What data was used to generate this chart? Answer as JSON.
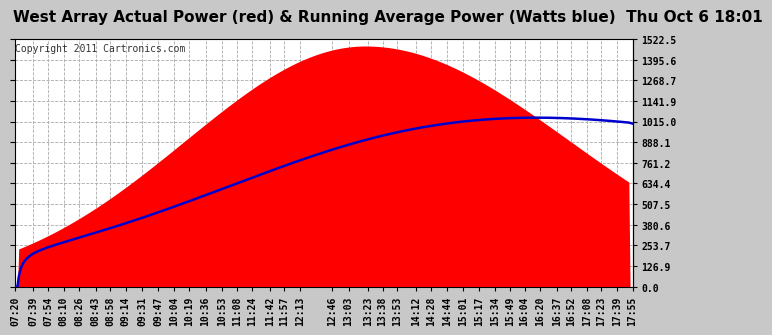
{
  "title": "West Array Actual Power (red) & Running Average Power (Watts blue)  Thu Oct 6 18:01",
  "copyright": "Copyright 2011 Cartronics.com",
  "ylabel_ticks": [
    0.0,
    126.9,
    253.7,
    380.6,
    507.5,
    634.4,
    761.2,
    888.1,
    1015.0,
    1141.9,
    1268.7,
    1395.6,
    1522.5
  ],
  "ymax": 1522.5,
  "ymin": 0.0,
  "x_labels": [
    "07:20",
    "07:39",
    "07:54",
    "08:10",
    "08:26",
    "08:43",
    "08:58",
    "09:14",
    "09:31",
    "09:47",
    "10:04",
    "10:19",
    "10:36",
    "10:53",
    "11:08",
    "11:24",
    "11:42",
    "11:57",
    "12:13",
    "12:46",
    "13:03",
    "13:23",
    "13:38",
    "13:53",
    "14:12",
    "14:28",
    "14:44",
    "15:01",
    "15:17",
    "15:34",
    "15:49",
    "16:04",
    "16:20",
    "16:37",
    "16:52",
    "17:08",
    "17:23",
    "17:39",
    "17:55"
  ],
  "background_color": "#c8c8c8",
  "plot_bg_color": "#ffffff",
  "fill_color": "#ff0000",
  "avg_line_color": "#0000cc",
  "title_fontsize": 11,
  "copyright_fontsize": 7,
  "tick_fontsize": 7,
  "grid_color": "#aaaaaa",
  "border_color": "#000000"
}
